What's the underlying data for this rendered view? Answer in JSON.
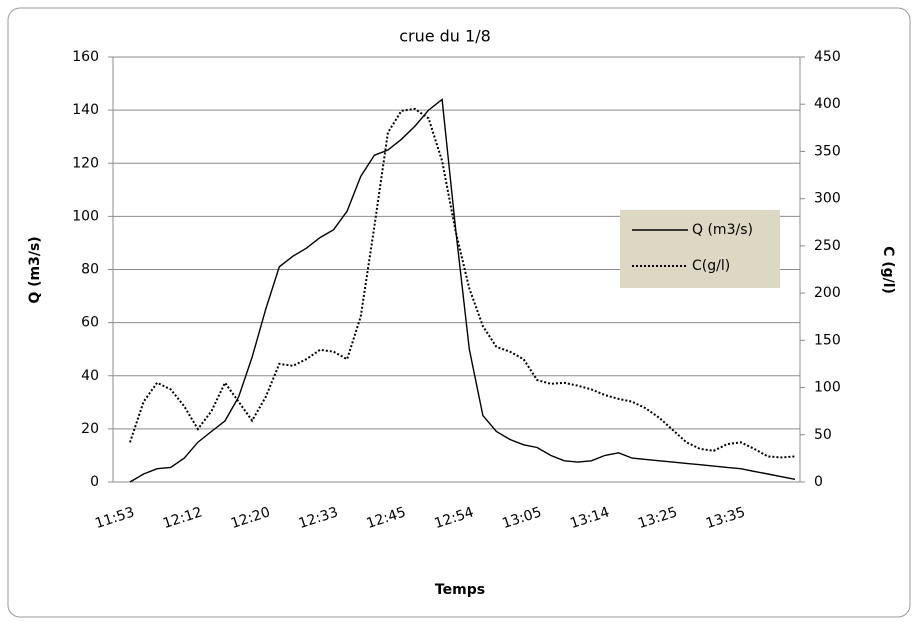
{
  "chart_data": {
    "type": "line",
    "title": "crue du 1/8",
    "x_label": "Temps",
    "y_label": "Q (m3/s)",
    "y2_label": "C (g/l)",
    "categories": [
      "11:53",
      null,
      null,
      null,
      null,
      "12:12",
      null,
      null,
      null,
      null,
      "12:20",
      null,
      null,
      null,
      null,
      "12:33",
      null,
      null,
      null,
      null,
      "12:45",
      null,
      null,
      null,
      null,
      "12:54",
      null,
      null,
      null,
      null,
      "13:05",
      null,
      null,
      null,
      null,
      "13:14",
      null,
      null,
      null,
      null,
      "13:25",
      null,
      null,
      null,
      null,
      "13:35",
      null,
      null,
      null,
      null
    ],
    "series": [
      {
        "name": "Q (m3/s)",
        "color": "#000000",
        "style": "solid",
        "values": [
          0,
          3,
          5,
          5.5,
          9,
          15,
          19,
          23,
          32,
          47,
          65,
          81,
          85,
          88,
          92,
          95,
          102,
          115,
          123,
          125,
          129,
          134,
          140,
          144,
          95,
          50,
          25,
          19,
          16,
          14,
          13,
          10,
          8,
          7.5,
          8,
          10,
          11,
          9,
          8.5,
          8,
          7.5,
          7,
          6.5,
          6,
          5.5,
          5,
          4,
          3,
          2,
          1
        ]
      },
      {
        "name": "C(g/l)",
        "color": "#000000",
        "style": "dotted",
        "axis": "y2",
        "values": [
          42,
          85,
          105,
          98,
          80,
          56,
          75,
          105,
          85,
          65,
          90,
          125,
          123,
          130,
          140,
          138,
          130,
          175,
          270,
          370,
          393,
          395,
          385,
          340,
          265,
          205,
          165,
          143,
          138,
          130,
          108,
          104,
          105,
          102,
          98,
          92,
          88,
          85,
          78,
          68,
          55,
          42,
          35,
          33,
          40,
          42,
          35,
          27,
          26,
          27
        ]
      }
    ],
    "ylim": [
      0,
      160
    ],
    "yticks": [
      0,
      20,
      40,
      60,
      80,
      100,
      120,
      140,
      160
    ],
    "y2lim": [
      0,
      450
    ],
    "y2ticks": [
      0,
      50,
      100,
      150,
      200,
      250,
      300,
      350,
      400,
      450
    ],
    "grid": true,
    "legend": "right"
  }
}
